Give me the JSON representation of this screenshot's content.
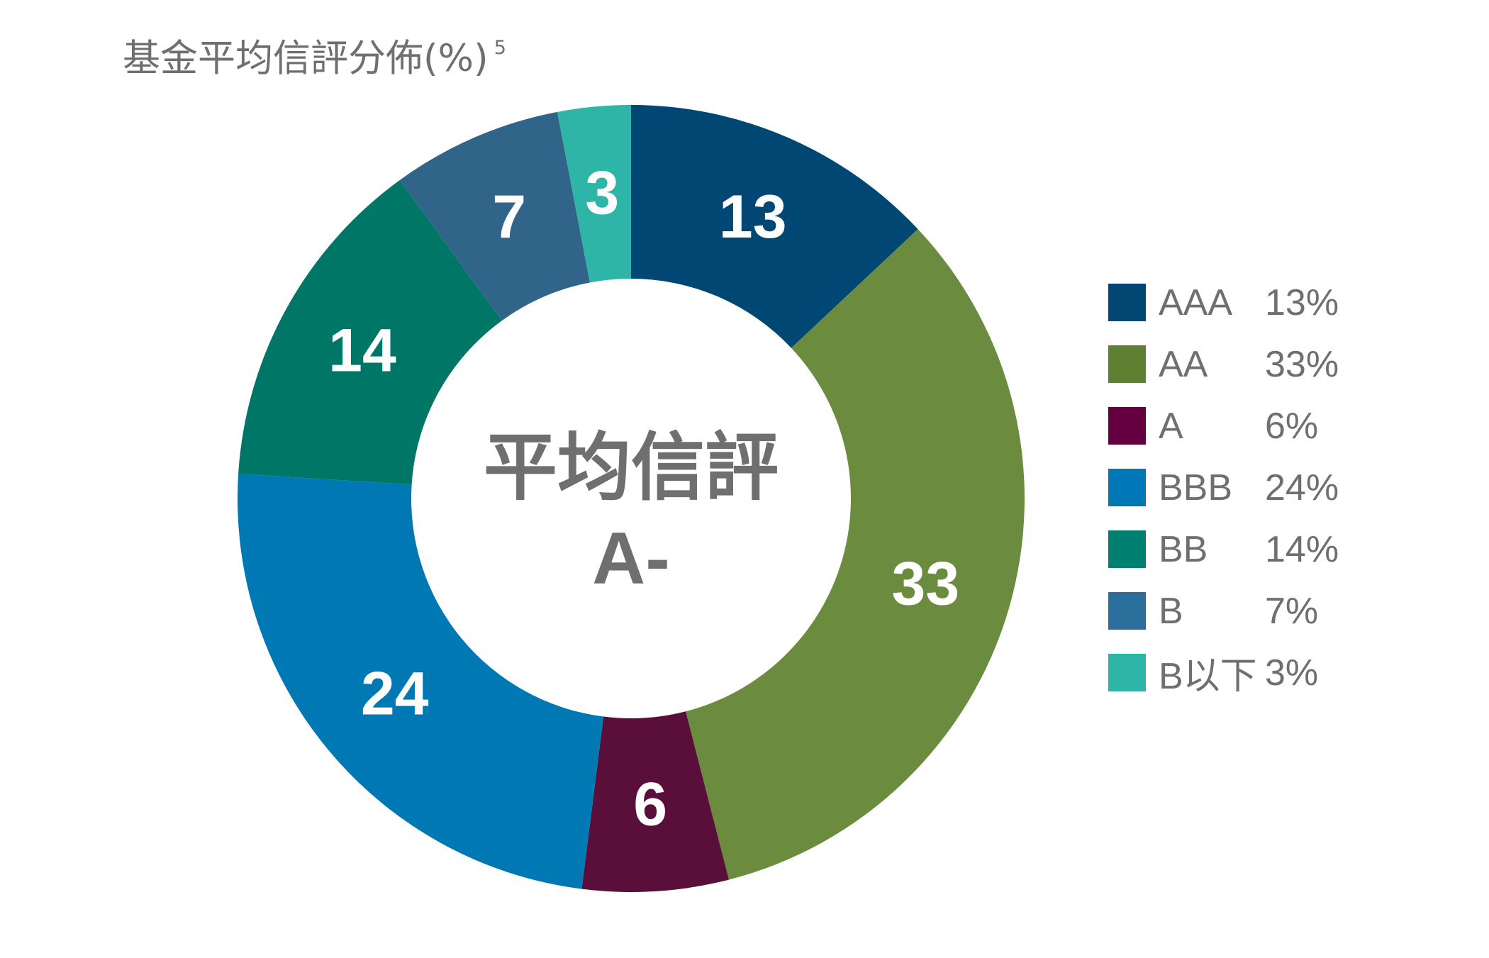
{
  "title": "基金平均信評分佈(%)",
  "title_note": "5",
  "chart_data": {
    "type": "pie",
    "variant": "donut",
    "title": "基金平均信評分佈(%)",
    "center_label": "平均信評",
    "center_value": "A-",
    "categories": [
      "AAA",
      "AA",
      "A",
      "BBB",
      "BB",
      "B",
      "B以下"
    ],
    "values": [
      13,
      33,
      6,
      24,
      14,
      7,
      3
    ],
    "slice_labels": [
      "13",
      "33",
      "6",
      "24",
      "14",
      "7",
      "3"
    ],
    "slice_colors": [
      "#004773",
      "#6b8c3f",
      "#5a0f3b",
      "#0078b4",
      "#007766",
      "#306489",
      "#2fb5a8"
    ],
    "legend": {
      "placement": "right",
      "items": [
        {
          "label": "AAA",
          "value": "13%",
          "color": "#004773"
        },
        {
          "label": "AA",
          "value": "33%",
          "color": "#5e8031"
        },
        {
          "label": "A",
          "value": "6%",
          "color": "#64003f"
        },
        {
          "label": "BBB",
          "value": "24%",
          "color": "#0078b7"
        },
        {
          "label": "BB",
          "value": "14%",
          "color": "#008070"
        },
        {
          "label": "B",
          "value": "7%",
          "color": "#2a6e9c"
        },
        {
          "label": "B以下",
          "value": "3%",
          "color": "#2fb5a8"
        }
      ]
    }
  },
  "colors": {
    "text": "#6f6f6f",
    "slice_label": "#ffffff"
  }
}
